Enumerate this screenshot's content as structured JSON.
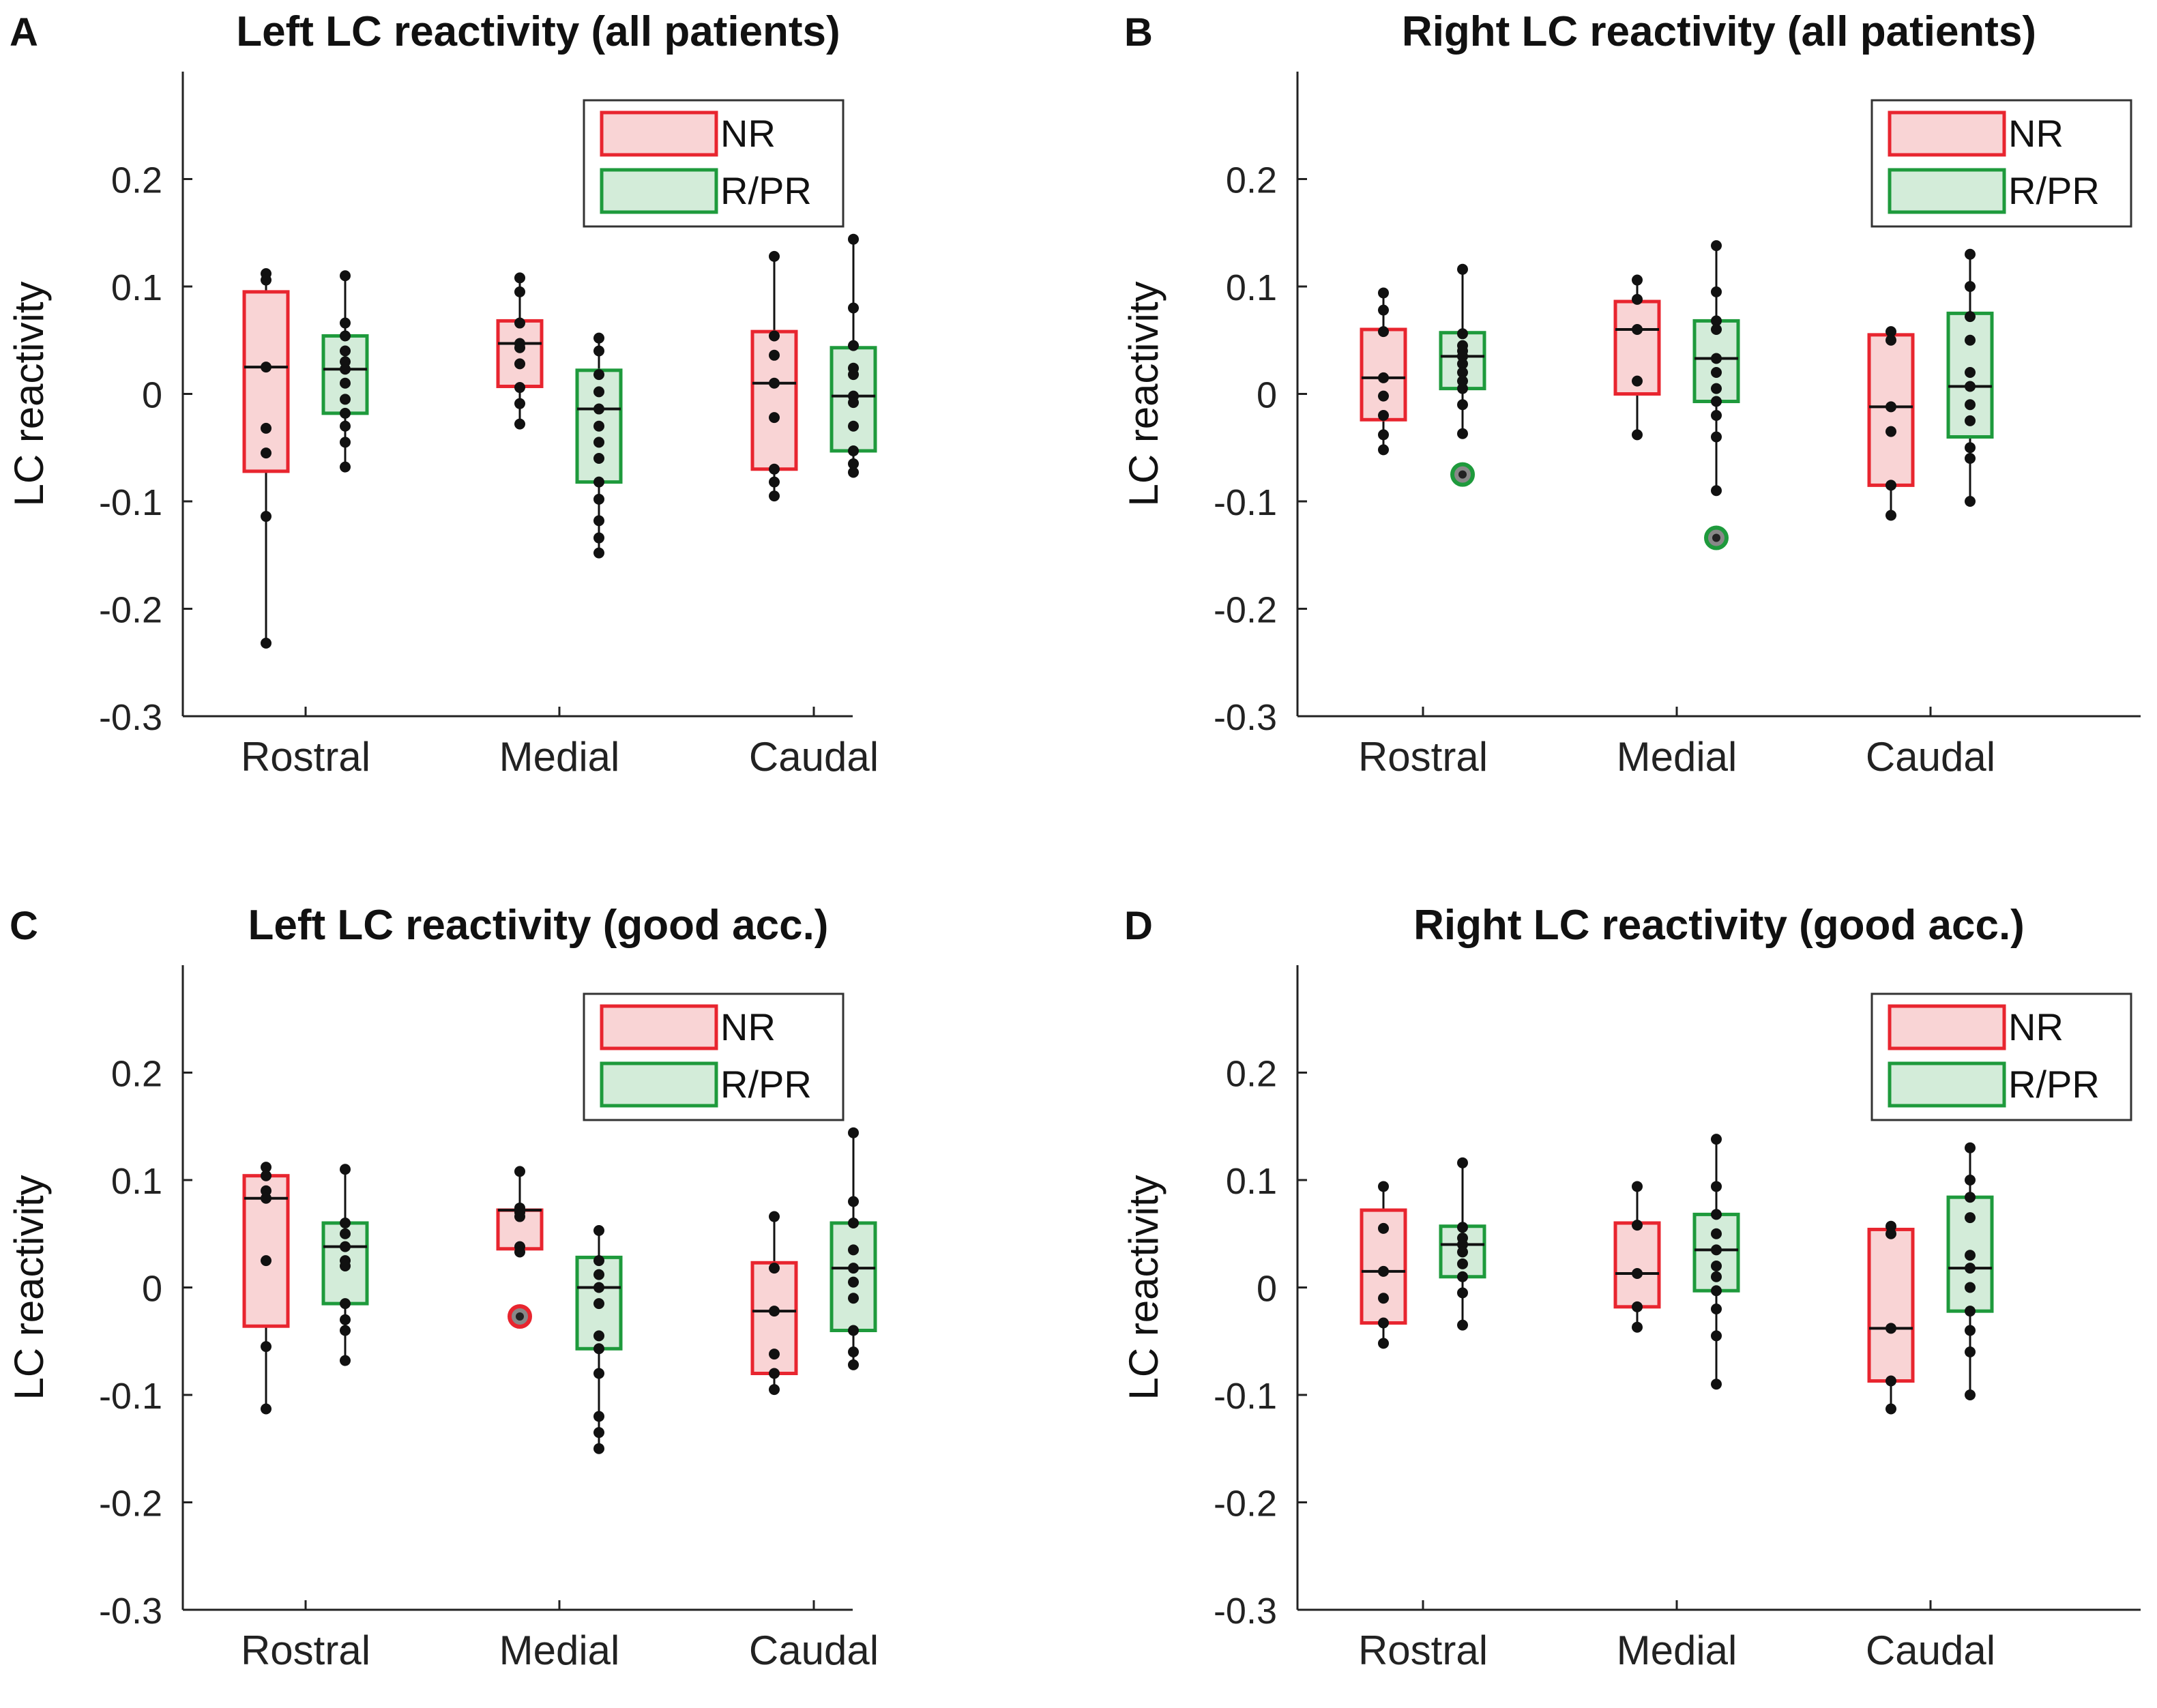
{
  "chart_data": [
    {
      "panel_label": "A",
      "type": "box",
      "title": "Left LC reactivity (all patients)",
      "ylabel": "LC reactivity",
      "xlabel": "",
      "ylim": [
        -0.3,
        0.3
      ],
      "yticks": [
        -0.3,
        -0.2,
        -0.1,
        0,
        0.1,
        0.2
      ],
      "ytick_labels": [
        "-0.3",
        "-0.2",
        "-0.1",
        "0",
        "0.1",
        "0.2"
      ],
      "categories": [
        "Rostral",
        "Medial",
        "Caudal"
      ],
      "legend": {
        "position": "top-right",
        "entries": [
          "NR",
          "R/PR"
        ]
      },
      "series": [
        {
          "name": "NR",
          "color": "#e8252f",
          "fill": "#f9d4d5",
          "boxes": [
            {
              "category": "Rostral",
              "min": -0.232,
              "q1": -0.072,
              "median": 0.025,
              "q3": 0.095,
              "max": 0.112,
              "points": [
                0.112,
                0.106,
                0.025,
                -0.032,
                -0.055,
                -0.114,
                -0.232
              ],
              "outliers": []
            },
            {
              "category": "Medial",
              "min": -0.028,
              "q1": 0.007,
              "median": 0.047,
              "q3": 0.068,
              "max": 0.108,
              "points": [
                0.108,
                0.095,
                0.066,
                0.047,
                0.043,
                0.028,
                0.006,
                -0.009,
                -0.028
              ],
              "outliers": []
            },
            {
              "category": "Caudal",
              "min": -0.095,
              "q1": -0.07,
              "median": 0.01,
              "q3": 0.058,
              "max": 0.128,
              "points": [
                0.128,
                0.054,
                0.036,
                0.01,
                -0.022,
                -0.07,
                -0.082,
                -0.095
              ],
              "outliers": []
            }
          ]
        },
        {
          "name": "R/PR",
          "color": "#1e9a3c",
          "fill": "#d3ecd9",
          "boxes": [
            {
              "category": "Rostral",
              "min": -0.068,
              "q1": -0.018,
              "median": 0.023,
              "q3": 0.054,
              "max": 0.11,
              "points": [
                0.11,
                0.066,
                0.054,
                0.04,
                0.03,
                0.023,
                0.01,
                -0.005,
                -0.018,
                -0.03,
                -0.045,
                -0.068
              ],
              "outliers": []
            },
            {
              "category": "Medial",
              "min": -0.148,
              "q1": -0.082,
              "median": -0.014,
              "q3": 0.022,
              "max": 0.052,
              "points": [
                0.052,
                0.04,
                0.018,
                0.002,
                -0.014,
                -0.03,
                -0.045,
                -0.06,
                -0.082,
                -0.098,
                -0.118,
                -0.134,
                -0.148
              ],
              "outliers": []
            },
            {
              "category": "Caudal",
              "min": -0.073,
              "q1": -0.053,
              "median": -0.002,
              "q3": 0.043,
              "max": 0.144,
              "points": [
                0.144,
                0.08,
                0.045,
                0.024,
                0.018,
                -0.002,
                -0.008,
                -0.03,
                -0.053,
                -0.065,
                -0.073
              ],
              "outliers": []
            }
          ]
        }
      ]
    },
    {
      "panel_label": "B",
      "type": "box",
      "title": "Right LC reactivity (all patients)",
      "ylabel": "LC reactivity",
      "xlabel": "",
      "ylim": [
        -0.3,
        0.3
      ],
      "yticks": [
        -0.3,
        -0.2,
        -0.1,
        0,
        0.1,
        0.2
      ],
      "ytick_labels": [
        "-0.3",
        "-0.2",
        "-0.1",
        "0",
        "0.1",
        "0.2"
      ],
      "categories": [
        "Rostral",
        "Medial",
        "Caudal"
      ],
      "legend": {
        "position": "top-right",
        "entries": [
          "NR",
          "R/PR"
        ]
      },
      "series": [
        {
          "name": "NR",
          "color": "#e8252f",
          "fill": "#f9d4d5",
          "boxes": [
            {
              "category": "Rostral",
              "min": -0.052,
              "q1": -0.024,
              "median": 0.015,
              "q3": 0.06,
              "max": 0.094,
              "points": [
                0.094,
                0.078,
                0.058,
                0.015,
                -0.002,
                -0.02,
                -0.038,
                -0.052
              ],
              "outliers": []
            },
            {
              "category": "Medial",
              "min": -0.038,
              "q1": 0.0,
              "median": 0.06,
              "q3": 0.086,
              "max": 0.106,
              "points": [
                0.106,
                0.088,
                0.06,
                0.012,
                -0.038
              ],
              "outliers": []
            },
            {
              "category": "Caudal",
              "min": -0.113,
              "q1": -0.085,
              "median": -0.012,
              "q3": 0.055,
              "max": 0.058,
              "points": [
                0.058,
                0.05,
                -0.012,
                -0.035,
                -0.085,
                -0.113
              ],
              "outliers": []
            }
          ]
        },
        {
          "name": "R/PR",
          "color": "#1e9a3c",
          "fill": "#d3ecd9",
          "boxes": [
            {
              "category": "Rostral",
              "min": -0.037,
              "q1": 0.005,
              "median": 0.035,
              "q3": 0.057,
              "max": 0.116,
              "points": [
                0.116,
                0.056,
                0.045,
                0.04,
                0.035,
                0.028,
                0.02,
                0.012,
                0.005,
                -0.01,
                -0.037
              ],
              "outliers": [
                -0.075
              ]
            },
            {
              "category": "Medial",
              "min": -0.09,
              "q1": -0.007,
              "median": 0.033,
              "q3": 0.068,
              "max": 0.138,
              "points": [
                0.138,
                0.095,
                0.068,
                0.06,
                0.033,
                0.02,
                0.005,
                -0.007,
                -0.02,
                -0.04,
                -0.09
              ],
              "outliers": [
                -0.134
              ]
            },
            {
              "category": "Caudal",
              "min": -0.1,
              "q1": -0.04,
              "median": 0.007,
              "q3": 0.075,
              "max": 0.13,
              "points": [
                0.13,
                0.1,
                0.072,
                0.05,
                0.02,
                0.007,
                -0.01,
                -0.025,
                -0.05,
                -0.06,
                -0.1
              ],
              "outliers": []
            }
          ]
        }
      ]
    },
    {
      "panel_label": "C",
      "type": "box",
      "title": "Left LC reactivity (good acc.)",
      "ylabel": "LC reactivity",
      "xlabel": "",
      "ylim": [
        -0.3,
        0.3
      ],
      "yticks": [
        -0.3,
        -0.2,
        -0.1,
        0,
        0.1,
        0.2
      ],
      "ytick_labels": [
        "-0.3",
        "-0.2",
        "-0.1",
        "0",
        "0.1",
        "0.2"
      ],
      "categories": [
        "Rostral",
        "Medial",
        "Caudal"
      ],
      "legend": {
        "position": "top-right",
        "entries": [
          "NR",
          "R/PR"
        ]
      },
      "series": [
        {
          "name": "NR",
          "color": "#e8252f",
          "fill": "#f9d4d5",
          "boxes": [
            {
              "category": "Rostral",
              "min": -0.113,
              "q1": -0.036,
              "median": 0.083,
              "q3": 0.104,
              "max": 0.112,
              "points": [
                0.112,
                0.104,
                0.09,
                0.083,
                0.025,
                -0.055,
                -0.113
              ],
              "outliers": []
            },
            {
              "category": "Medial",
              "min": 0.033,
              "q1": 0.036,
              "median": 0.072,
              "q3": 0.072,
              "max": 0.108,
              "points": [
                0.108,
                0.074,
                0.07,
                0.066,
                0.038,
                0.033
              ],
              "outliers": [
                -0.027
              ]
            },
            {
              "category": "Caudal",
              "min": -0.095,
              "q1": -0.08,
              "median": -0.022,
              "q3": 0.023,
              "max": 0.066,
              "points": [
                0.066,
                0.018,
                -0.022,
                -0.062,
                -0.08,
                -0.095
              ],
              "outliers": []
            }
          ]
        },
        {
          "name": "R/PR",
          "color": "#1e9a3c",
          "fill": "#d3ecd9",
          "boxes": [
            {
              "category": "Rostral",
              "min": -0.068,
              "q1": -0.015,
              "median": 0.038,
              "q3": 0.06,
              "max": 0.11,
              "points": [
                0.11,
                0.06,
                0.05,
                0.038,
                0.025,
                0.02,
                -0.015,
                -0.03,
                -0.04,
                -0.068
              ],
              "outliers": []
            },
            {
              "category": "Medial",
              "min": -0.15,
              "q1": -0.057,
              "median": 0.0,
              "q3": 0.028,
              "max": 0.053,
              "points": [
                0.053,
                0.025,
                0.012,
                0.0,
                -0.015,
                -0.045,
                -0.057,
                -0.08,
                -0.12,
                -0.135,
                -0.15
              ],
              "outliers": []
            },
            {
              "category": "Caudal",
              "min": -0.072,
              "q1": -0.04,
              "median": 0.018,
              "q3": 0.06,
              "max": 0.144,
              "points": [
                0.144,
                0.08,
                0.06,
                0.035,
                0.018,
                0.005,
                -0.01,
                -0.04,
                -0.06,
                -0.072
              ],
              "outliers": []
            }
          ]
        }
      ]
    },
    {
      "panel_label": "D",
      "type": "box",
      "title": "Right LC reactivity (good acc.)",
      "ylabel": "LC reactivity",
      "xlabel": "",
      "ylim": [
        -0.3,
        0.3
      ],
      "yticks": [
        -0.3,
        -0.2,
        -0.1,
        0,
        0.1,
        0.2
      ],
      "ytick_labels": [
        "-0.3",
        "-0.2",
        "-0.1",
        "0",
        "0.1",
        "0.2"
      ],
      "categories": [
        "Rostral",
        "Medial",
        "Caudal"
      ],
      "legend": {
        "position": "top-right",
        "entries": [
          "NR",
          "R/PR"
        ]
      },
      "series": [
        {
          "name": "NR",
          "color": "#e8252f",
          "fill": "#f9d4d5",
          "boxes": [
            {
              "category": "Rostral",
              "min": -0.052,
              "q1": -0.033,
              "median": 0.015,
              "q3": 0.072,
              "max": 0.094,
              "points": [
                0.094,
                0.055,
                0.015,
                -0.01,
                -0.033,
                -0.052
              ],
              "outliers": []
            },
            {
              "category": "Medial",
              "min": -0.037,
              "q1": -0.018,
              "median": 0.013,
              "q3": 0.06,
              "max": 0.094,
              "points": [
                0.094,
                0.058,
                0.013,
                -0.018,
                -0.037
              ],
              "outliers": []
            },
            {
              "category": "Caudal",
              "min": -0.113,
              "q1": -0.087,
              "median": -0.038,
              "q3": 0.054,
              "max": 0.057,
              "points": [
                0.057,
                0.05,
                -0.038,
                -0.087,
                -0.113
              ],
              "outliers": []
            }
          ]
        },
        {
          "name": "R/PR",
          "color": "#1e9a3c",
          "fill": "#d3ecd9",
          "boxes": [
            {
              "category": "Rostral",
              "min": -0.035,
              "q1": 0.01,
              "median": 0.04,
              "q3": 0.057,
              "max": 0.116,
              "points": [
                0.116,
                0.056,
                0.046,
                0.04,
                0.033,
                0.022,
                0.01,
                -0.005,
                -0.035
              ],
              "outliers": []
            },
            {
              "category": "Medial",
              "min": -0.09,
              "q1": -0.003,
              "median": 0.035,
              "q3": 0.068,
              "max": 0.138,
              "points": [
                0.138,
                0.094,
                0.068,
                0.05,
                0.035,
                0.02,
                0.01,
                -0.003,
                -0.02,
                -0.045,
                -0.09
              ],
              "outliers": []
            },
            {
              "category": "Caudal",
              "min": -0.1,
              "q1": -0.022,
              "median": 0.018,
              "q3": 0.084,
              "max": 0.13,
              "points": [
                0.13,
                0.1,
                0.084,
                0.065,
                0.03,
                0.018,
                0.0,
                -0.022,
                -0.04,
                -0.06,
                -0.1
              ],
              "outliers": []
            }
          ]
        }
      ]
    }
  ]
}
